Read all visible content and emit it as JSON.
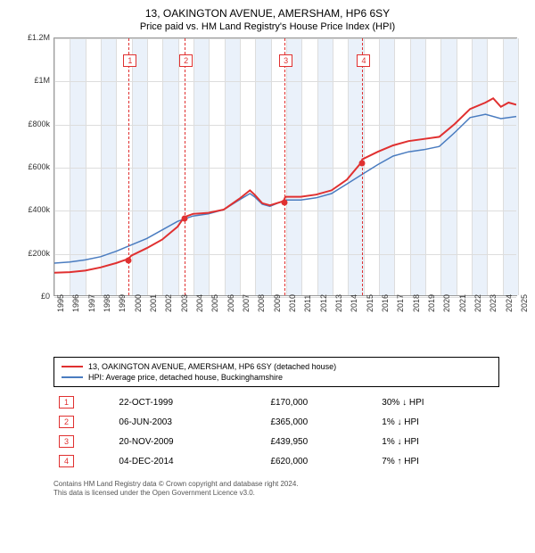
{
  "title": "13, OAKINGTON AVENUE, AMERSHAM, HP6 6SY",
  "subtitle": "Price paid vs. HM Land Registry's House Price Index (HPI)",
  "chart": {
    "type": "line",
    "background_color": "#ffffff",
    "grid_color": "#dddddd",
    "band_color": "#eaf1fa",
    "xlim": [
      1995,
      2025
    ],
    "ylim": [
      0,
      1200000
    ],
    "ytick_step": 200000,
    "yticks": [
      {
        "val": 0,
        "label": "£0"
      },
      {
        "val": 200000,
        "label": "£200k"
      },
      {
        "val": 400000,
        "label": "£400k"
      },
      {
        "val": 600000,
        "label": "£600k"
      },
      {
        "val": 800000,
        "label": "£800k"
      },
      {
        "val": 1000000,
        "label": "£1M"
      },
      {
        "val": 1200000,
        "label": "£1.2M"
      }
    ],
    "xticks": [
      1995,
      1996,
      1997,
      1998,
      1999,
      2000,
      2001,
      2002,
      2003,
      2004,
      2005,
      2006,
      2007,
      2008,
      2009,
      2010,
      2011,
      2012,
      2013,
      2014,
      2015,
      2016,
      2017,
      2018,
      2019,
      2020,
      2021,
      2022,
      2023,
      2024,
      2025
    ],
    "series": [
      {
        "name": "13, OAKINGTON AVENUE, AMERSHAM, HP6 6SY (detached house)",
        "color": "#e03030",
        "line_width": 2,
        "data": [
          [
            1995,
            105000
          ],
          [
            1996,
            108000
          ],
          [
            1997,
            115000
          ],
          [
            1998,
            130000
          ],
          [
            1999,
            150000
          ],
          [
            1999.81,
            170000
          ],
          [
            2000,
            185000
          ],
          [
            2001,
            220000
          ],
          [
            2002,
            260000
          ],
          [
            2003,
            320000
          ],
          [
            2003.43,
            365000
          ],
          [
            2004,
            380000
          ],
          [
            2005,
            385000
          ],
          [
            2006,
            400000
          ],
          [
            2007,
            450000
          ],
          [
            2007.7,
            490000
          ],
          [
            2008,
            470000
          ],
          [
            2008.5,
            430000
          ],
          [
            2009,
            420000
          ],
          [
            2009.89,
            439950
          ],
          [
            2010,
            460000
          ],
          [
            2011,
            460000
          ],
          [
            2012,
            470000
          ],
          [
            2013,
            490000
          ],
          [
            2014,
            540000
          ],
          [
            2014.93,
            620000
          ],
          [
            2015,
            635000
          ],
          [
            2016,
            670000
          ],
          [
            2017,
            700000
          ],
          [
            2018,
            720000
          ],
          [
            2019,
            730000
          ],
          [
            2020,
            740000
          ],
          [
            2021,
            800000
          ],
          [
            2022,
            870000
          ],
          [
            2023,
            900000
          ],
          [
            2023.5,
            920000
          ],
          [
            2024,
            880000
          ],
          [
            2024.5,
            900000
          ],
          [
            2025,
            890000
          ]
        ]
      },
      {
        "name": "HPI: Average price, detached house, Buckinghamshire",
        "color": "#4a7cc0",
        "line_width": 1.5,
        "data": [
          [
            1995,
            150000
          ],
          [
            1996,
            155000
          ],
          [
            1997,
            165000
          ],
          [
            1998,
            180000
          ],
          [
            1999,
            205000
          ],
          [
            2000,
            235000
          ],
          [
            2001,
            265000
          ],
          [
            2002,
            305000
          ],
          [
            2003,
            345000
          ],
          [
            2004,
            370000
          ],
          [
            2005,
            380000
          ],
          [
            2006,
            400000
          ],
          [
            2007,
            445000
          ],
          [
            2007.7,
            475000
          ],
          [
            2008,
            460000
          ],
          [
            2008.5,
            425000
          ],
          [
            2009,
            415000
          ],
          [
            2010,
            445000
          ],
          [
            2011,
            445000
          ],
          [
            2012,
            455000
          ],
          [
            2013,
            475000
          ],
          [
            2014,
            520000
          ],
          [
            2015,
            565000
          ],
          [
            2016,
            610000
          ],
          [
            2017,
            650000
          ],
          [
            2018,
            670000
          ],
          [
            2019,
            680000
          ],
          [
            2020,
            695000
          ],
          [
            2021,
            760000
          ],
          [
            2022,
            830000
          ],
          [
            2023,
            845000
          ],
          [
            2024,
            825000
          ],
          [
            2025,
            835000
          ]
        ]
      }
    ],
    "ref_lines": [
      {
        "x": 1999.81,
        "label": "1"
      },
      {
        "x": 2003.43,
        "label": "2"
      },
      {
        "x": 2009.89,
        "label": "3"
      },
      {
        "x": 2014.93,
        "label": "4"
      }
    ],
    "sale_points": [
      {
        "x": 1999.81,
        "y": 170000
      },
      {
        "x": 2003.43,
        "y": 365000
      },
      {
        "x": 2009.89,
        "y": 439950
      },
      {
        "x": 2014.93,
        "y": 620000
      }
    ],
    "label_fontsize": 9,
    "title_fontsize": 12
  },
  "legend": {
    "items": [
      {
        "color": "#e03030",
        "label": "13, OAKINGTON AVENUE, AMERSHAM, HP6 6SY (detached house)"
      },
      {
        "color": "#4a7cc0",
        "label": "HPI: Average price, detached house, Buckinghamshire"
      }
    ]
  },
  "transactions": [
    {
      "num": "1",
      "date": "22-OCT-1999",
      "price": "£170,000",
      "delta": "30%",
      "dir": "↓",
      "vs": "HPI"
    },
    {
      "num": "2",
      "date": "06-JUN-2003",
      "price": "£365,000",
      "delta": "1%",
      "dir": "↓",
      "vs": "HPI"
    },
    {
      "num": "3",
      "date": "20-NOV-2009",
      "price": "£439,950",
      "delta": "1%",
      "dir": "↓",
      "vs": "HPI"
    },
    {
      "num": "4",
      "date": "04-DEC-2014",
      "price": "£620,000",
      "delta": "7%",
      "dir": "↑",
      "vs": "HPI"
    }
  ],
  "footer": {
    "line1": "Contains HM Land Registry data © Crown copyright and database right 2024.",
    "line2": "This data is licensed under the Open Government Licence v3.0."
  }
}
